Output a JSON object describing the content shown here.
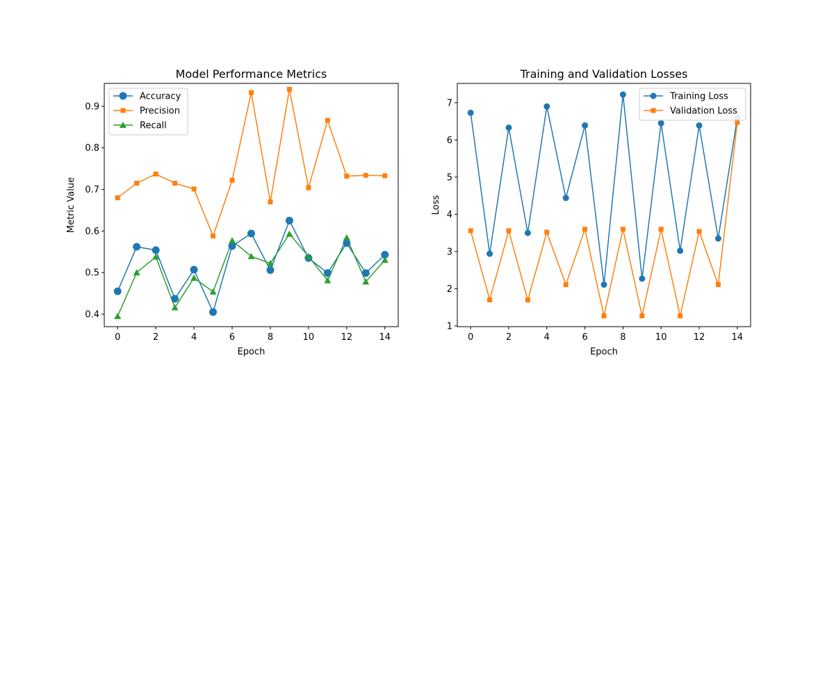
{
  "colors": {
    "blue": "#1f77b4",
    "orange": "#ff7f0e",
    "green": "#2ca02c"
  },
  "chart_data": [
    {
      "type": "line",
      "title": "Model Performance Metrics",
      "xlabel": "Epoch",
      "ylabel": "Metric Value",
      "xlim": [
        -0.7,
        14.7
      ],
      "ylim": [
        0.37,
        0.955
      ],
      "xticks": [
        0,
        2,
        4,
        6,
        8,
        10,
        12,
        14
      ],
      "yticks": [
        0.4,
        0.5,
        0.6,
        0.7,
        0.8,
        0.9
      ],
      "grid": false,
      "legend": "top-left",
      "x": [
        0,
        1,
        2,
        3,
        4,
        5,
        6,
        7,
        8,
        9,
        10,
        11,
        12,
        13,
        14
      ],
      "series": [
        {
          "name": "Accuracy",
          "color": "#1f77b4",
          "marker": "circle",
          "values": [
            0.455,
            0.562,
            0.554,
            0.437,
            0.507,
            0.405,
            0.564,
            0.594,
            0.506,
            0.625,
            0.535,
            0.499,
            0.571,
            0.499,
            0.543
          ]
        },
        {
          "name": "Precision",
          "color": "#ff7f0e",
          "marker": "square",
          "values": [
            0.68,
            0.715,
            0.737,
            0.715,
            0.701,
            0.588,
            0.722,
            0.933,
            0.67,
            0.941,
            0.704,
            0.866,
            0.732,
            0.734,
            0.733
          ]
        },
        {
          "name": "Recall",
          "color": "#2ca02c",
          "marker": "triangle",
          "values": [
            0.395,
            0.5,
            0.538,
            0.416,
            0.487,
            0.454,
            0.577,
            0.539,
            0.522,
            0.593,
            0.539,
            0.481,
            0.584,
            0.478,
            0.53
          ]
        }
      ]
    },
    {
      "type": "line",
      "title": "Training and Validation Losses",
      "xlabel": "Epoch",
      "ylabel": "Loss",
      "xlim": [
        -0.7,
        14.7
      ],
      "ylim": [
        0.98,
        7.52
      ],
      "xticks": [
        0,
        2,
        4,
        6,
        8,
        10,
        12,
        14
      ],
      "yticks": [
        1,
        2,
        3,
        4,
        5,
        6,
        7
      ],
      "grid": false,
      "legend": "top-right",
      "x": [
        0,
        1,
        2,
        3,
        4,
        5,
        6,
        7,
        8,
        9,
        10,
        11,
        12,
        13,
        14
      ],
      "series": [
        {
          "name": "Training Loss",
          "color": "#1f77b4",
          "marker": "circle",
          "values": [
            6.73,
            2.94,
            6.33,
            3.5,
            6.9,
            4.44,
            6.39,
            2.11,
            7.22,
            2.27,
            6.45,
            3.02,
            6.39,
            3.35,
            6.59
          ]
        },
        {
          "name": "Validation Loss",
          "color": "#ff7f0e",
          "marker": "square",
          "values": [
            3.56,
            1.7,
            3.56,
            1.7,
            3.52,
            2.11,
            3.6,
            1.27,
            3.6,
            1.27,
            3.6,
            1.27,
            3.54,
            2.11,
            6.47
          ]
        }
      ]
    }
  ]
}
